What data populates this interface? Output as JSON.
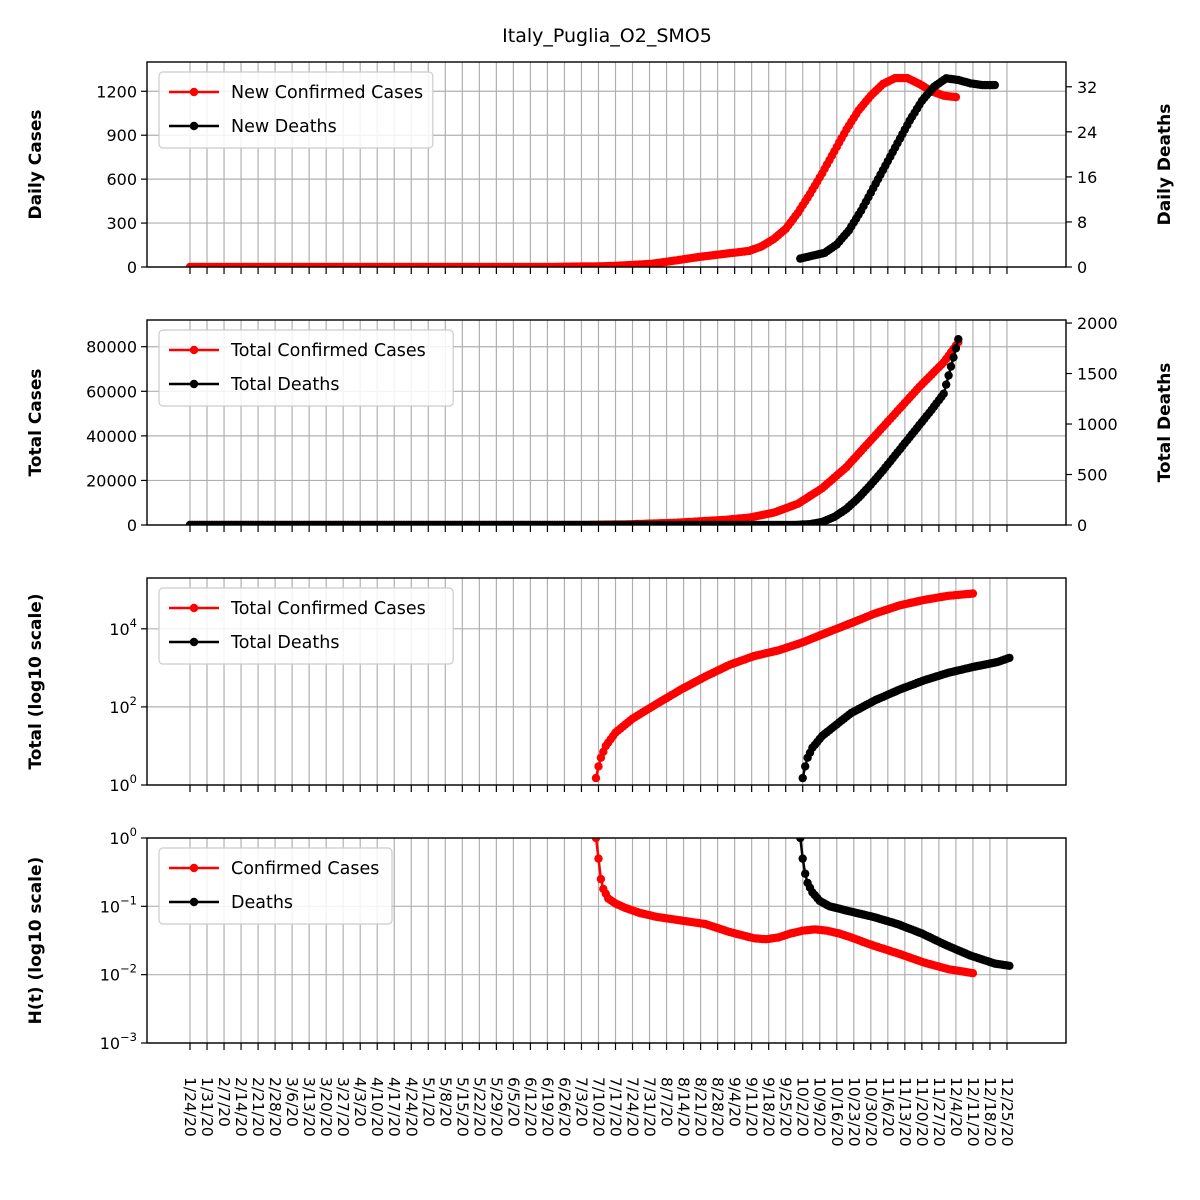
{
  "title": "Italy_Puglia_O2_SMO5",
  "colors": {
    "cases": "#ff0000",
    "deaths": "#000000",
    "grid": "#b0b0b0"
  },
  "x_dates": [
    "1/24/20",
    "1/31/20",
    "2/7/20",
    "2/14/20",
    "2/21/20",
    "2/28/20",
    "3/6/20",
    "3/13/20",
    "3/20/20",
    "3/27/20",
    "4/3/20",
    "4/10/20",
    "4/17/20",
    "4/24/20",
    "5/1/20",
    "5/8/20",
    "5/15/20",
    "5/22/20",
    "5/29/20",
    "6/5/20",
    "6/12/20",
    "6/19/20",
    "6/26/20",
    "7/3/20",
    "7/10/20",
    "7/17/20",
    "7/24/20",
    "7/31/20",
    "8/7/20",
    "8/14/20",
    "8/21/20",
    "8/28/20",
    "9/4/20",
    "9/11/20",
    "9/18/20",
    "9/25/20",
    "10/2/20",
    "10/9/20",
    "10/16/20",
    "10/23/20",
    "10/30/20",
    "11/6/20",
    "11/13/20",
    "11/20/20",
    "11/27/20",
    "12/4/20",
    "12/11/20",
    "12/18/20",
    "12/25/20"
  ],
  "chart_data": [
    {
      "type": "line",
      "ylabel": "Daily Cases",
      "y2label": "Daily Deaths",
      "ylim": [
        0,
        1400
      ],
      "y2lim": [
        0,
        36.4
      ],
      "yticks": [
        "0",
        "300",
        "600",
        "900",
        "1200"
      ],
      "y2ticks": [
        "0",
        "8",
        "16",
        "24",
        "32"
      ],
      "legend": {
        "placement": "upper-left",
        "entries": [
          "New Confirmed Cases",
          "New Deaths"
        ]
      },
      "grid": true,
      "series": [
        {
          "name": "New Confirmed Cases",
          "axis": "left",
          "color": "#ff0000",
          "start_date": "1/24/20",
          "points": [
            [
              0,
              0
            ],
            [
              140,
              0
            ],
            [
              150,
              1
            ],
            [
              170,
              5
            ],
            [
              180,
              12
            ],
            [
              190,
              22
            ],
            [
              200,
              45
            ],
            [
              210,
              70
            ],
            [
              220,
              90
            ],
            [
              230,
              110
            ],
            [
              235,
              140
            ],
            [
              240,
              190
            ],
            [
              245,
              260
            ],
            [
              250,
              370
            ],
            [
              255,
              500
            ],
            [
              260,
              640
            ],
            [
              265,
              790
            ],
            [
              270,
              940
            ],
            [
              275,
              1070
            ],
            [
              280,
              1170
            ],
            [
              285,
              1250
            ],
            [
              290,
              1290
            ],
            [
              295,
              1290
            ],
            [
              300,
              1250
            ],
            [
              305,
              1200
            ],
            [
              310,
              1170
            ],
            [
              315,
              1160
            ]
          ]
        },
        {
          "name": "New Deaths",
          "axis": "right",
          "color": "#000000",
          "start_date": "10/1/20",
          "points": [
            [
              0,
              1.5
            ],
            [
              10,
              2.5
            ],
            [
              15,
              4
            ],
            [
              20,
              6.5
            ],
            [
              25,
              10
            ],
            [
              30,
              14
            ],
            [
              35,
              18
            ],
            [
              40,
              22
            ],
            [
              45,
              26
            ],
            [
              50,
              29.5
            ],
            [
              55,
              32
            ],
            [
              60,
              33.5
            ],
            [
              65,
              33.2
            ],
            [
              70,
              32.6
            ],
            [
              75,
              32.3
            ],
            [
              80,
              32.3
            ]
          ]
        }
      ]
    },
    {
      "type": "line",
      "ylabel": "Total Cases",
      "y2label": "Total Deaths",
      "ylim": [
        0,
        92000
      ],
      "y2lim": [
        0,
        2030
      ],
      "yticks": [
        "0",
        "20000",
        "40000",
        "60000",
        "80000"
      ],
      "y2ticks": [
        "0",
        "500",
        "1000",
        "1500",
        "2000"
      ],
      "legend": {
        "placement": "upper-left",
        "entries": [
          "Total Confirmed Cases",
          "Total Deaths"
        ]
      },
      "grid": true,
      "series": [
        {
          "name": "Total Confirmed Cases",
          "axis": "left",
          "color": "#ff0000",
          "start_date": "1/24/20",
          "points": [
            [
              0,
              0
            ],
            [
              160,
              0
            ],
            [
              180,
              300
            ],
            [
              200,
              1000
            ],
            [
              220,
              2300
            ],
            [
              230,
              3300
            ],
            [
              240,
              5500
            ],
            [
              250,
              9500
            ],
            [
              260,
              16500
            ],
            [
              270,
              26000
            ],
            [
              280,
              38000
            ],
            [
              290,
              50000
            ],
            [
              300,
              62000
            ],
            [
              310,
              73000
            ],
            [
              316,
              82000
            ]
          ]
        },
        {
          "name": "Total Deaths",
          "axis": "right",
          "color": "#000000",
          "start_date": "1/24/20",
          "points": [
            [
              0,
              0
            ],
            [
              248,
              0
            ],
            [
              255,
              8
            ],
            [
              260,
              30
            ],
            [
              265,
              80
            ],
            [
              270,
              160
            ],
            [
              275,
              270
            ],
            [
              280,
              400
            ],
            [
              285,
              540
            ],
            [
              290,
              690
            ],
            [
              295,
              840
            ],
            [
              300,
              990
            ],
            [
              305,
              1140
            ],
            [
              310,
              1300
            ],
            [
              316,
              1840
            ]
          ]
        }
      ]
    },
    {
      "type": "line",
      "scale": "log",
      "ylabel": "Total (log10 scale)",
      "ylim": [
        1,
        200000
      ],
      "yticks": [
        {
          "value": 1,
          "base": "10",
          "exp": "0"
        },
        {
          "value": 100,
          "base": "10",
          "exp": "2"
        },
        {
          "value": 10000,
          "base": "10",
          "exp": "4"
        }
      ],
      "legend": {
        "placement": "upper-left",
        "entries": [
          "Total Confirmed Cases",
          "Total Deaths"
        ]
      },
      "grid": true,
      "series": [
        {
          "name": "Total Confirmed Cases",
          "color": "#ff0000",
          "start_date": "7/9/20",
          "points": [
            [
              0,
              1.5
            ],
            [
              1,
              3
            ],
            [
              2,
              5
            ],
            [
              4,
              10
            ],
            [
              8,
              22
            ],
            [
              15,
              50
            ],
            [
              25,
              120
            ],
            [
              35,
              280
            ],
            [
              45,
              600
            ],
            [
              55,
              1200
            ],
            [
              65,
              2000
            ],
            [
              75,
              2800
            ],
            [
              85,
              4500
            ],
            [
              95,
              8000
            ],
            [
              105,
              14000
            ],
            [
              115,
              25000
            ],
            [
              125,
              40000
            ],
            [
              135,
              55000
            ],
            [
              145,
              70000
            ],
            [
              155,
              80000
            ]
          ]
        },
        {
          "name": "Total Deaths",
          "color": "#000000",
          "start_date": "10/2/20",
          "points": [
            [
              0,
              1.5
            ],
            [
              1,
              3
            ],
            [
              2,
              5
            ],
            [
              4,
              9
            ],
            [
              8,
              18
            ],
            [
              15,
              40
            ],
            [
              20,
              70
            ],
            [
              30,
              150
            ],
            [
              40,
              280
            ],
            [
              50,
              480
            ],
            [
              60,
              750
            ],
            [
              70,
              1050
            ],
            [
              80,
              1400
            ],
            [
              85,
              1800
            ]
          ]
        }
      ]
    },
    {
      "type": "line",
      "scale": "log",
      "ylabel": "H(t) (log10 scale)",
      "ylim": [
        0.001,
        1
      ],
      "yticks": [
        {
          "value": 0.001,
          "base": "10",
          "exp": "−3"
        },
        {
          "value": 0.01,
          "base": "10",
          "exp": "−2"
        },
        {
          "value": 0.1,
          "base": "10",
          "exp": "−1"
        },
        {
          "value": 1,
          "base": "10",
          "exp": "0"
        }
      ],
      "legend": {
        "placement": "upper-left",
        "entries": [
          "Confirmed Cases",
          "Deaths"
        ]
      },
      "grid": true,
      "series": [
        {
          "name": "Confirmed Cases",
          "color": "#ff0000",
          "start_date": "7/9/20",
          "points": [
            [
              0,
              1.0
            ],
            [
              1,
              0.5
            ],
            [
              2,
              0.25
            ],
            [
              3,
              0.18
            ],
            [
              5,
              0.13
            ],
            [
              8,
              0.11
            ],
            [
              12,
              0.095
            ],
            [
              18,
              0.08
            ],
            [
              25,
              0.07
            ],
            [
              35,
              0.062
            ],
            [
              45,
              0.055
            ],
            [
              55,
              0.042
            ],
            [
              65,
              0.034
            ],
            [
              70,
              0.033
            ],
            [
              75,
              0.035
            ],
            [
              80,
              0.04
            ],
            [
              85,
              0.044
            ],
            [
              90,
              0.046
            ],
            [
              95,
              0.044
            ],
            [
              100,
              0.04
            ],
            [
              105,
              0.035
            ],
            [
              110,
              0.03
            ],
            [
              115,
              0.026
            ],
            [
              125,
              0.02
            ],
            [
              135,
              0.015
            ],
            [
              145,
              0.012
            ],
            [
              155,
              0.0105
            ]
          ]
        },
        {
          "name": "Deaths",
          "color": "#000000",
          "start_date": "10/1/20",
          "points": [
            [
              0,
              1.0
            ],
            [
              1,
              0.5
            ],
            [
              2,
              0.3
            ],
            [
              3,
              0.22
            ],
            [
              5,
              0.16
            ],
            [
              8,
              0.12
            ],
            [
              12,
              0.1
            ],
            [
              20,
              0.085
            ],
            [
              30,
              0.07
            ],
            [
              40,
              0.055
            ],
            [
              50,
              0.04
            ],
            [
              60,
              0.027
            ],
            [
              70,
              0.019
            ],
            [
              80,
              0.0145
            ],
            [
              86,
              0.0135
            ]
          ]
        }
      ]
    }
  ]
}
